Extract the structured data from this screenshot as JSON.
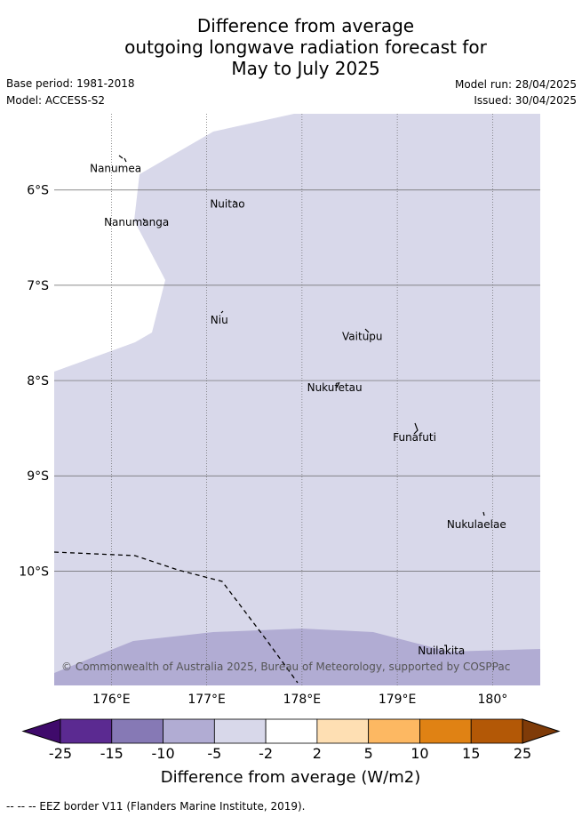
{
  "title": {
    "line1": "Difference from average",
    "line2": "outgoing longwave radiation forecast for",
    "line3": "May to July 2025"
  },
  "meta": {
    "base_period": "Base period: 1981-2018",
    "model": "Model: ACCESS-S2",
    "model_run": "Model run: 28/04/2025",
    "issued": "Issued: 30/04/2025"
  },
  "map": {
    "lon_range": [
      175.4,
      180.5
    ],
    "lat_range": [
      -11.2,
      -5.2
    ],
    "lon_ticks": [
      {
        "value": 176,
        "label": "176°E"
      },
      {
        "value": 177,
        "label": "177°E"
      },
      {
        "value": 178,
        "label": "178°E"
      },
      {
        "value": 179,
        "label": "179°E"
      },
      {
        "value": 180,
        "label": "180°"
      }
    ],
    "lat_ticks": [
      {
        "value": -6,
        "label": "6°S"
      },
      {
        "value": -7,
        "label": "7°S"
      },
      {
        "value": -8,
        "label": "8°S"
      },
      {
        "value": -9,
        "label": "9°S"
      },
      {
        "value": -10,
        "label": "10°S"
      }
    ],
    "colors": {
      "band_-5_-2": "#d8d8ea",
      "band_-10_-5": "#b1acd3",
      "grid": "#666666"
    },
    "places": [
      {
        "name": "Nanumea",
        "lon": 176.1,
        "lat": -5.67
      },
      {
        "name": "Nuitao",
        "lon": 177.33,
        "lat": -6.11
      },
      {
        "name": "Nanumanga",
        "lon": 176.32,
        "lat": -6.29
      },
      {
        "name": "Niu",
        "lon": 177.16,
        "lat": -7.3
      },
      {
        "name": "Vaitupu",
        "lon": 178.68,
        "lat": -7.48
      },
      {
        "name": "Nukufetau",
        "lon": 178.38,
        "lat": -8.02
      },
      {
        "name": "Funafuti",
        "lon": 179.2,
        "lat": -8.52
      },
      {
        "name": "Nukulaelae",
        "lon": 179.85,
        "lat": -9.42
      },
      {
        "name": "Nuilakita",
        "lon": 179.5,
        "lat": -10.75
      }
    ],
    "copyright": "© Commonwealth of Australia 2025, Bureau of Meteorology, supported by COSPPac"
  },
  "colorbar": {
    "label": "Difference from average (W/m2)",
    "ticks": [
      "-25",
      "-15",
      "-10",
      "-5",
      "-2",
      "2",
      "5",
      "10",
      "15",
      "25"
    ],
    "colors": [
      "#5b2a91",
      "#8679b5",
      "#b1acd3",
      "#d8d8ea",
      "#ffffff",
      "#fedfb3",
      "#fdb862",
      "#e08214",
      "#b35806"
    ],
    "extend_low_color": "#3f0a6b",
    "extend_high_color": "#7f3b08"
  },
  "footer": "-- -- -- EEZ border V11 (Flanders Marine Institute, 2019)."
}
